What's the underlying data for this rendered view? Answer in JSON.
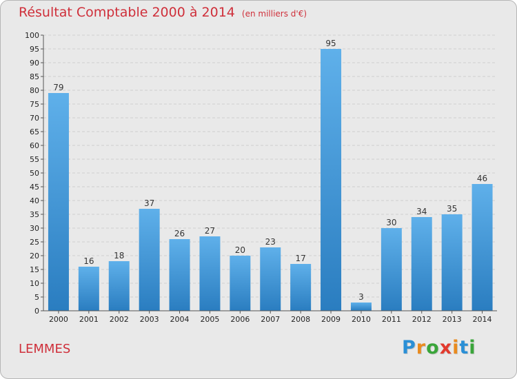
{
  "header": {
    "title": "Résultat Comptable 2000 à 2014",
    "subtitle": "(en milliers d'€)"
  },
  "footer": {
    "commune": "LEMMES",
    "logo_text": "Proxiti"
  },
  "colors": {
    "title": "#cf2f3a",
    "bar_top": "#5fb0ea",
    "bar_bottom": "#2a7dc0",
    "logo": [
      "#2a8fd6",
      "#e98b1f",
      "#3aa53a",
      "#e23a2e",
      "#e98b1f",
      "#2a8fd6",
      "#3aa53a"
    ]
  },
  "chart_data": {
    "type": "bar",
    "title": "Résultat Comptable 2000 à 2014",
    "subtitle": "(en milliers d'€)",
    "categories": [
      "2000",
      "2001",
      "2002",
      "2003",
      "2004",
      "2005",
      "2006",
      "2007",
      "2008",
      "2009",
      "2010",
      "2011",
      "2012",
      "2013",
      "2014"
    ],
    "values": [
      79,
      16,
      18,
      37,
      26,
      27,
      20,
      23,
      17,
      95,
      3,
      30,
      34,
      35,
      46
    ],
    "ylim": [
      0,
      100
    ],
    "ytick_step": 5,
    "grid": true,
    "xlabel": "",
    "ylabel": ""
  }
}
